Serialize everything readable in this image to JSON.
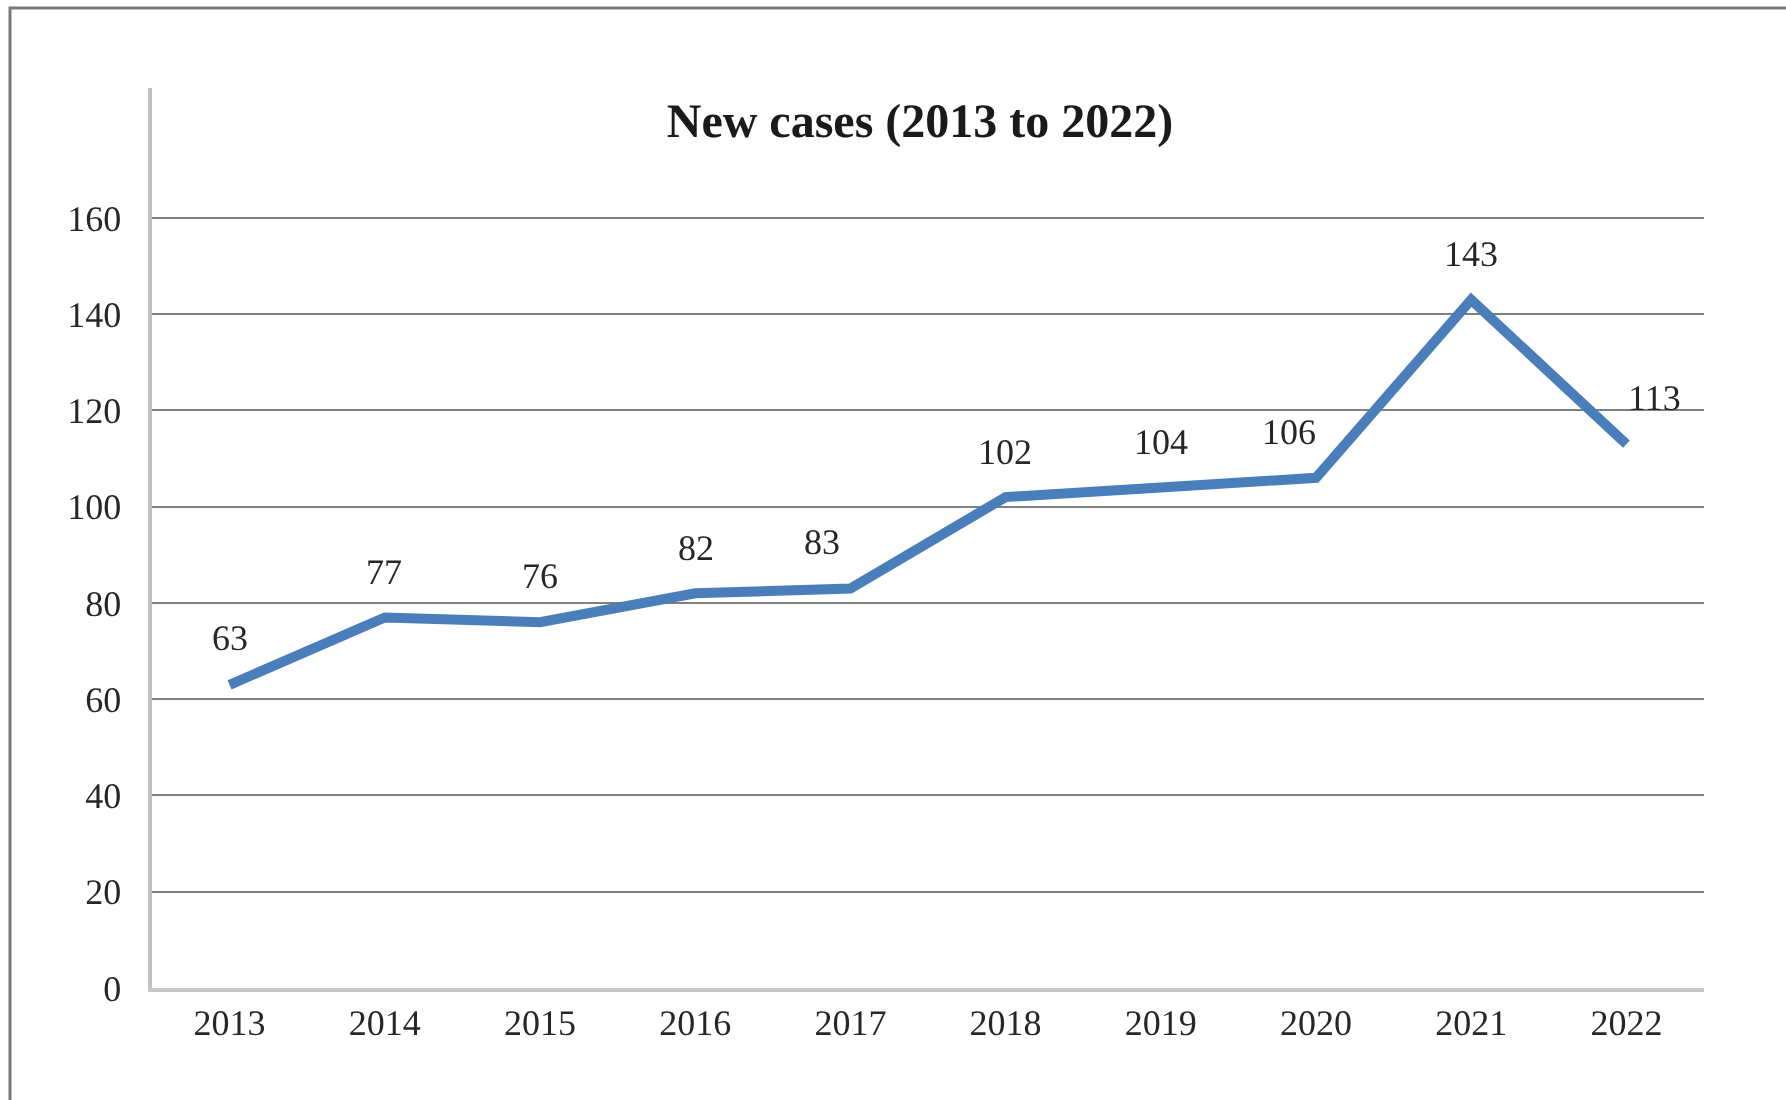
{
  "chart_data": {
    "type": "line",
    "title": "New cases (2013 to 2022)",
    "categories": [
      "2013",
      "2014",
      "2015",
      "2016",
      "2017",
      "2018",
      "2019",
      "2020",
      "2021",
      "2022"
    ],
    "values": [
      63,
      77,
      76,
      82,
      83,
      102,
      104,
      106,
      143,
      113
    ],
    "color": "#4a7ebb",
    "ylim": [
      0,
      187
    ],
    "yticks": [
      0,
      20,
      40,
      60,
      80,
      100,
      120,
      140,
      160
    ],
    "grid": "y",
    "data_labels": true
  }
}
